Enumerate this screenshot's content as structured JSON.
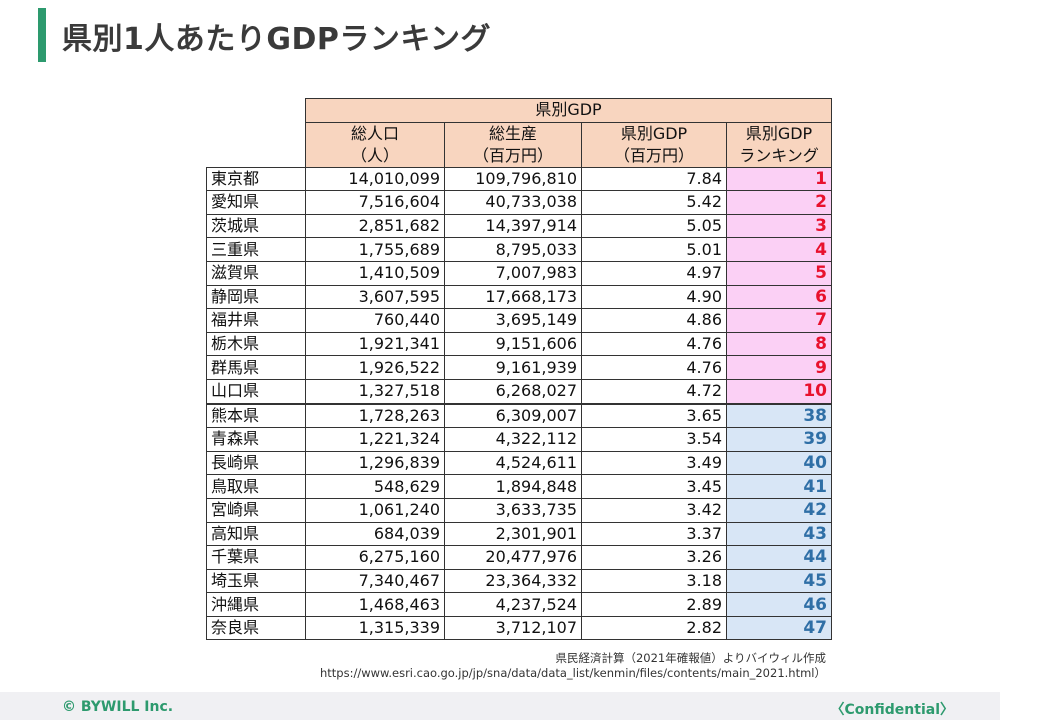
{
  "title": "県別1人あたりGDPランキング",
  "table": {
    "group_header": "県別GDP",
    "columns": [
      {
        "line1": "総人口",
        "line2": "（人）"
      },
      {
        "line1": "総生産",
        "line2": "（百万円）"
      },
      {
        "line1": "県別GDP",
        "line2": "（百万円）"
      },
      {
        "line1": "県別GDP",
        "line2": "ランキング"
      }
    ],
    "rows": [
      {
        "pref": "東京都",
        "pop": "14,010,099",
        "gdp": "109,796,810",
        "per_capita": "7.84",
        "rank": "1"
      },
      {
        "pref": "愛知県",
        "pop": "7,516,604",
        "gdp": "40,733,038",
        "per_capita": "5.42",
        "rank": "2"
      },
      {
        "pref": "茨城県",
        "pop": "2,851,682",
        "gdp": "14,397,914",
        "per_capita": "5.05",
        "rank": "3"
      },
      {
        "pref": "三重県",
        "pop": "1,755,689",
        "gdp": "8,795,033",
        "per_capita": "5.01",
        "rank": "4"
      },
      {
        "pref": "滋賀県",
        "pop": "1,410,509",
        "gdp": "7,007,983",
        "per_capita": "4.97",
        "rank": "5"
      },
      {
        "pref": "静岡県",
        "pop": "3,607,595",
        "gdp": "17,668,173",
        "per_capita": "4.90",
        "rank": "6"
      },
      {
        "pref": "福井県",
        "pop": "760,440",
        "gdp": "3,695,149",
        "per_capita": "4.86",
        "rank": "7"
      },
      {
        "pref": "栃木県",
        "pop": "1,921,341",
        "gdp": "9,151,606",
        "per_capita": "4.76",
        "rank": "8"
      },
      {
        "pref": "群馬県",
        "pop": "1,926,522",
        "gdp": "9,161,939",
        "per_capita": "4.76",
        "rank": "9"
      },
      {
        "pref": "山口県",
        "pop": "1,327,518",
        "gdp": "6,268,027",
        "per_capita": "4.72",
        "rank": "10"
      },
      {
        "pref": "熊本県",
        "pop": "1,728,263",
        "gdp": "6,309,007",
        "per_capita": "3.65",
        "rank": "38"
      },
      {
        "pref": "青森県",
        "pop": "1,221,324",
        "gdp": "4,322,112",
        "per_capita": "3.54",
        "rank": "39"
      },
      {
        "pref": "長崎県",
        "pop": "1,296,839",
        "gdp": "4,524,611",
        "per_capita": "3.49",
        "rank": "40"
      },
      {
        "pref": "鳥取県",
        "pop": "548,629",
        "gdp": "1,894,848",
        "per_capita": "3.45",
        "rank": "41"
      },
      {
        "pref": "宮崎県",
        "pop": "1,061,240",
        "gdp": "3,633,735",
        "per_capita": "3.42",
        "rank": "42"
      },
      {
        "pref": "高知県",
        "pop": "684,039",
        "gdp": "2,301,901",
        "per_capita": "3.37",
        "rank": "43"
      },
      {
        "pref": "千葉県",
        "pop": "6,275,160",
        "gdp": "20,477,976",
        "per_capita": "3.26",
        "rank": "44"
      },
      {
        "pref": "埼玉県",
        "pop": "7,340,467",
        "gdp": "23,364,332",
        "per_capita": "3.18",
        "rank": "45"
      },
      {
        "pref": "沖縄県",
        "pop": "1,468,463",
        "gdp": "4,237,524",
        "per_capita": "2.89",
        "rank": "46"
      },
      {
        "pref": "奈良県",
        "pop": "1,315,339",
        "gdp": "3,712,107",
        "per_capita": "2.82",
        "rank": "47"
      }
    ],
    "top_rank_color": "#fbd0f5",
    "bottom_rank_color": "#d8e6f6"
  },
  "source": {
    "line1": "県民経済計算（2021年確報値）よりバイウィル作成",
    "line2": "https://www.esri.cao.go.jp/jp/sna/data/data_list/kenmin/files/contents/main_2021.html）"
  },
  "footer": {
    "copyright": "© BYWILL Inc.",
    "confidential": "〈Confidential〉"
  }
}
